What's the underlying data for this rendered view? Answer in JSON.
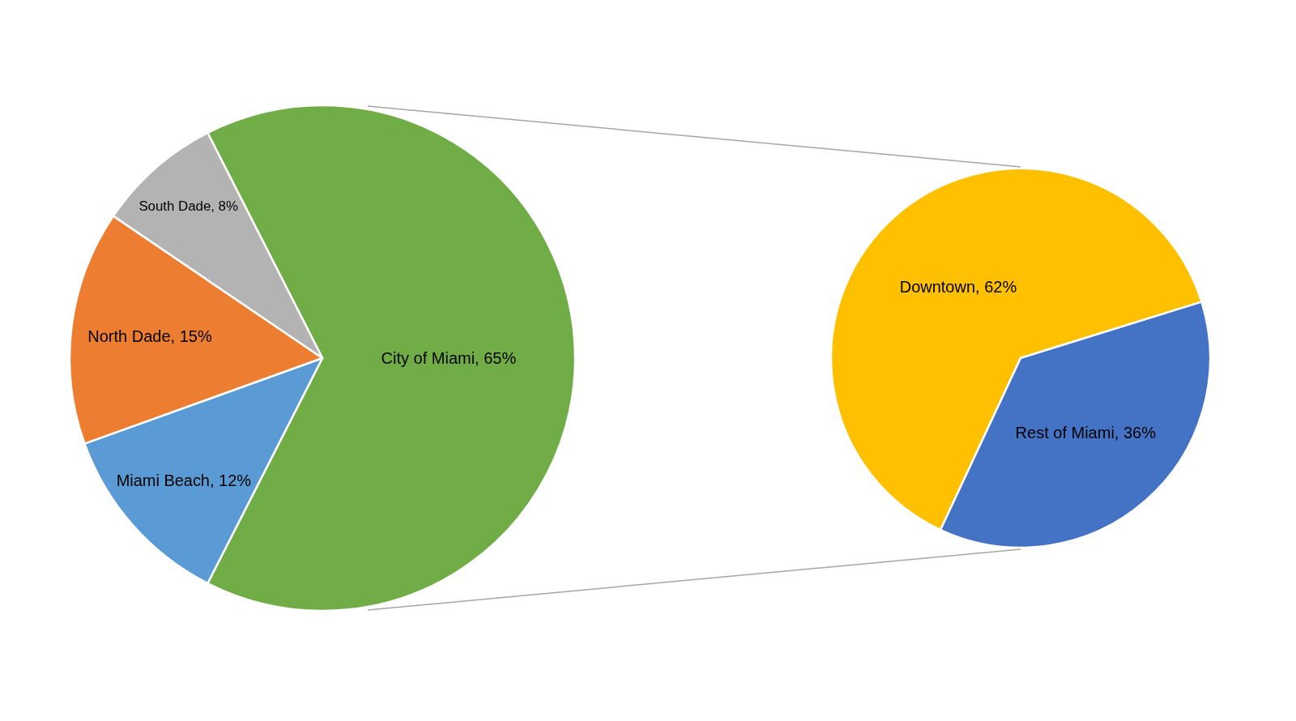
{
  "chart_data": [
    {
      "type": "pie",
      "categories": [
        "City of Miami",
        "Miami Beach",
        "North Dade",
        "South Dade"
      ],
      "values": [
        65,
        12,
        15,
        8
      ],
      "value_labels": [
        "65%",
        "12%",
        "15%",
        "8%"
      ],
      "colors": [
        "#70ad47",
        "#5b9bd5",
        "#ed7d31",
        "#b3b3b3"
      ],
      "legend": false
    },
    {
      "type": "pie",
      "categories": [
        "Downtown",
        "Rest of Miami"
      ],
      "values": [
        62,
        36
      ],
      "value_labels": [
        "62%",
        "36%"
      ],
      "colors": [
        "#ffc000",
        "#4472c4"
      ],
      "legend": false
    }
  ]
}
